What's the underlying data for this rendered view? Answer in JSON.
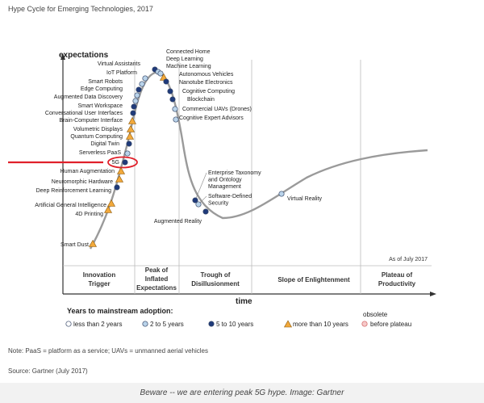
{
  "chart_data": {
    "type": "line",
    "title": "Hype Cycle for Emerging Technologies, 2017",
    "ylabel": "expectations",
    "xlabel": "time",
    "as_of": "As of July 2017",
    "phases": [
      "Innovation Trigger",
      "Peak of Inflated Expectations",
      "Trough of Disillusionment",
      "Slope of Enlightenment",
      "Plateau of Productivity"
    ],
    "legend": {
      "title": "Years to mainstream adoption:",
      "items": [
        {
          "symbol": "white-circle",
          "label": "less than 2 years"
        },
        {
          "symbol": "lightblue-circle",
          "label": "2 to 5 years"
        },
        {
          "symbol": "darkblue-circle",
          "label": "5 to 10 years"
        },
        {
          "symbol": "orange-triangle",
          "label": "more than 10 years"
        },
        {
          "symbol": "obsolete-circle",
          "label": "obsolete before plateau"
        }
      ]
    },
    "technologies": [
      {
        "name": "Connected Home",
        "phase": "Peak of Inflated Expectations",
        "adoption": "5 to 10 years"
      },
      {
        "name": "Deep Learning",
        "phase": "Peak of Inflated Expectations",
        "adoption": "2 to 5 years"
      },
      {
        "name": "Machine Learning",
        "phase": "Peak of Inflated Expectations",
        "adoption": "2 to 5 years"
      },
      {
        "name": "Virtual Assistants",
        "phase": "Peak of Inflated Expectations",
        "adoption": "2 to 5 years"
      },
      {
        "name": "IoT Platform",
        "phase": "Peak of Inflated Expectations",
        "adoption": "2 to 5 years"
      },
      {
        "name": "Autonomous Vehicles",
        "phase": "Peak of Inflated Expectations",
        "adoption": "more than 10 years"
      },
      {
        "name": "Nanotube Electronics",
        "phase": "Peak of Inflated Expectations",
        "adoption": "5 to 10 years"
      },
      {
        "name": "Smart Robots",
        "phase": "Innovation Trigger",
        "adoption": "5 to 10 years"
      },
      {
        "name": "Cognitive Computing",
        "phase": "Peak of Inflated Expectations",
        "adoption": "5 to 10 years"
      },
      {
        "name": "Edge Computing",
        "phase": "Innovation Trigger",
        "adoption": "2 to 5 years"
      },
      {
        "name": "Blockchain",
        "phase": "Peak of Inflated Expectations",
        "adoption": "5 to 10 years"
      },
      {
        "name": "Augmented Data Discovery",
        "phase": "Innovation Trigger",
        "adoption": "2 to 5 years"
      },
      {
        "name": "Smart Workspace",
        "phase": "Innovation Trigger",
        "adoption": "5 to 10 years"
      },
      {
        "name": "Commercial UAVs (Drones)",
        "phase": "Peak of Inflated Expectations",
        "adoption": "2 to 5 years"
      },
      {
        "name": "Conversational User Interfaces",
        "phase": "Innovation Trigger",
        "adoption": "5 to 10 years"
      },
      {
        "name": "Cognitive Expert Advisors",
        "phase": "Peak of Inflated Expectations",
        "adoption": "2 to 5 years"
      },
      {
        "name": "Brain-Computer Interface",
        "phase": "Innovation Trigger",
        "adoption": "more than 10 years"
      },
      {
        "name": "Volumetric Displays",
        "phase": "Innovation Trigger",
        "adoption": "more than 10 years"
      },
      {
        "name": "Quantum Computing",
        "phase": "Innovation Trigger",
        "adoption": "more than 10 years"
      },
      {
        "name": "Digital Twin",
        "phase": "Innovation Trigger",
        "adoption": "5 to 10 years"
      },
      {
        "name": "Serverless PaaS",
        "phase": "Innovation Trigger",
        "adoption": "2 to 5 years"
      },
      {
        "name": "5G",
        "phase": "Innovation Trigger",
        "adoption": "5 to 10 years"
      },
      {
        "name": "Human Augmentation",
        "phase": "Innovation Trigger",
        "adoption": "more than 10 years"
      },
      {
        "name": "Neuromorphic Hardware",
        "phase": "Innovation Trigger",
        "adoption": "more than 10 years"
      },
      {
        "name": "Deep Reinforcement Learning",
        "phase": "Innovation Trigger",
        "adoption": "5 to 10 years"
      },
      {
        "name": "Artificial General Intelligence",
        "phase": "Innovation Trigger",
        "adoption": "more than 10 years"
      },
      {
        "name": "4D Printing",
        "phase": "Innovation Trigger",
        "adoption": "more than 10 years"
      },
      {
        "name": "Smart Dust",
        "phase": "Innovation Trigger",
        "adoption": "more than 10 years"
      },
      {
        "name": "Enterprise Taxonomy and Ontology Management",
        "phase": "Trough of Disillusionment",
        "adoption": "5 to 10 years"
      },
      {
        "name": "Software-Defined Security",
        "phase": "Trough of Disillusionment",
        "adoption": "2 to 5 years"
      },
      {
        "name": "Augmented Reality",
        "phase": "Trough of Disillusionment",
        "adoption": "5 to 10 years"
      },
      {
        "name": "Virtual Reality",
        "phase": "Slope of Enlightenment",
        "adoption": "2 to 5 years"
      }
    ],
    "colors": {
      "curve": "#9a9a9a",
      "dark_blue": "#1f3a7a",
      "light_blue": "#b9d3ea",
      "triangle": "#f2a93b",
      "highlight": "#e0202a"
    }
  },
  "note": "Note: PaaS = platform as a service; UAVs = unmanned aerial vehicles",
  "source": "Source: Gartner (July 2017)",
  "caption": "Beware -- we are entering peak 5G hype. Image: Gartner"
}
